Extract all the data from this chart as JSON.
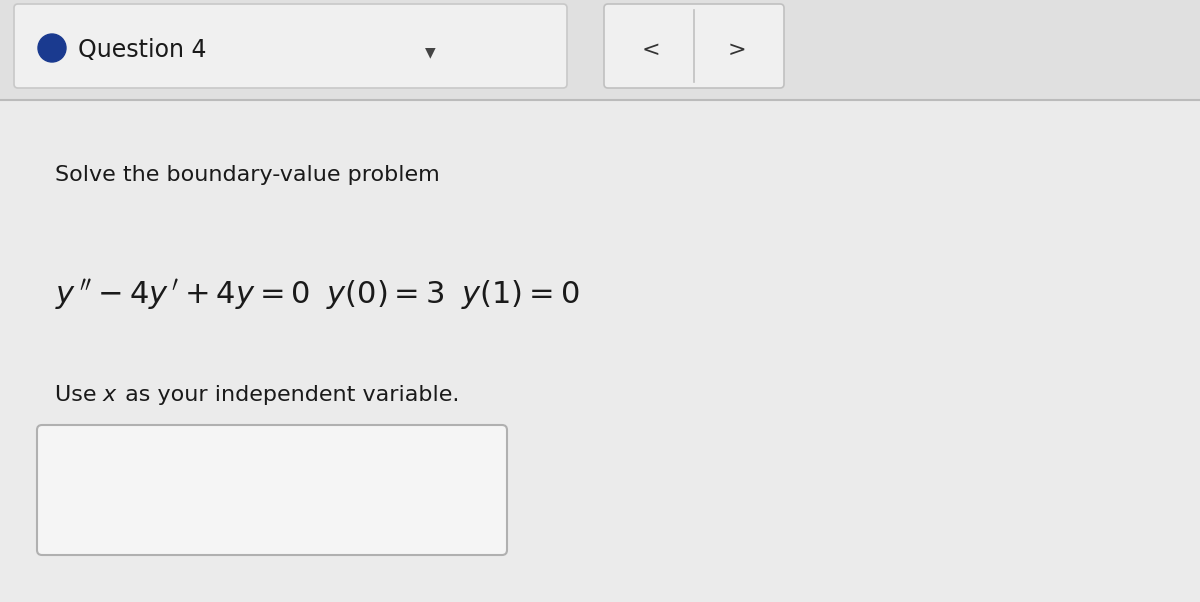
{
  "bg_color": "#e8e8e8",
  "content_bg": "#ebebeb",
  "header_box_bg": "#f0f0f0",
  "header_dot_color": "#1a3a8f",
  "header_border_color": "#c8c8c8",
  "line1": "Solve the boundary-value problem",
  "line3_prefix": "Use ",
  "line3_x": "x",
  "line3_suffix": " as your independent variable.",
  "input_box_color": "#f5f5f5",
  "input_box_border": "#b0b0b0",
  "text_color": "#1a1a1a",
  "nav_button_bg": "#f0f0f0",
  "nav_border": "#c0c0c0",
  "font_size_header": 17,
  "font_size_body": 16,
  "font_size_math": 18,
  "header_text": "Question 4"
}
